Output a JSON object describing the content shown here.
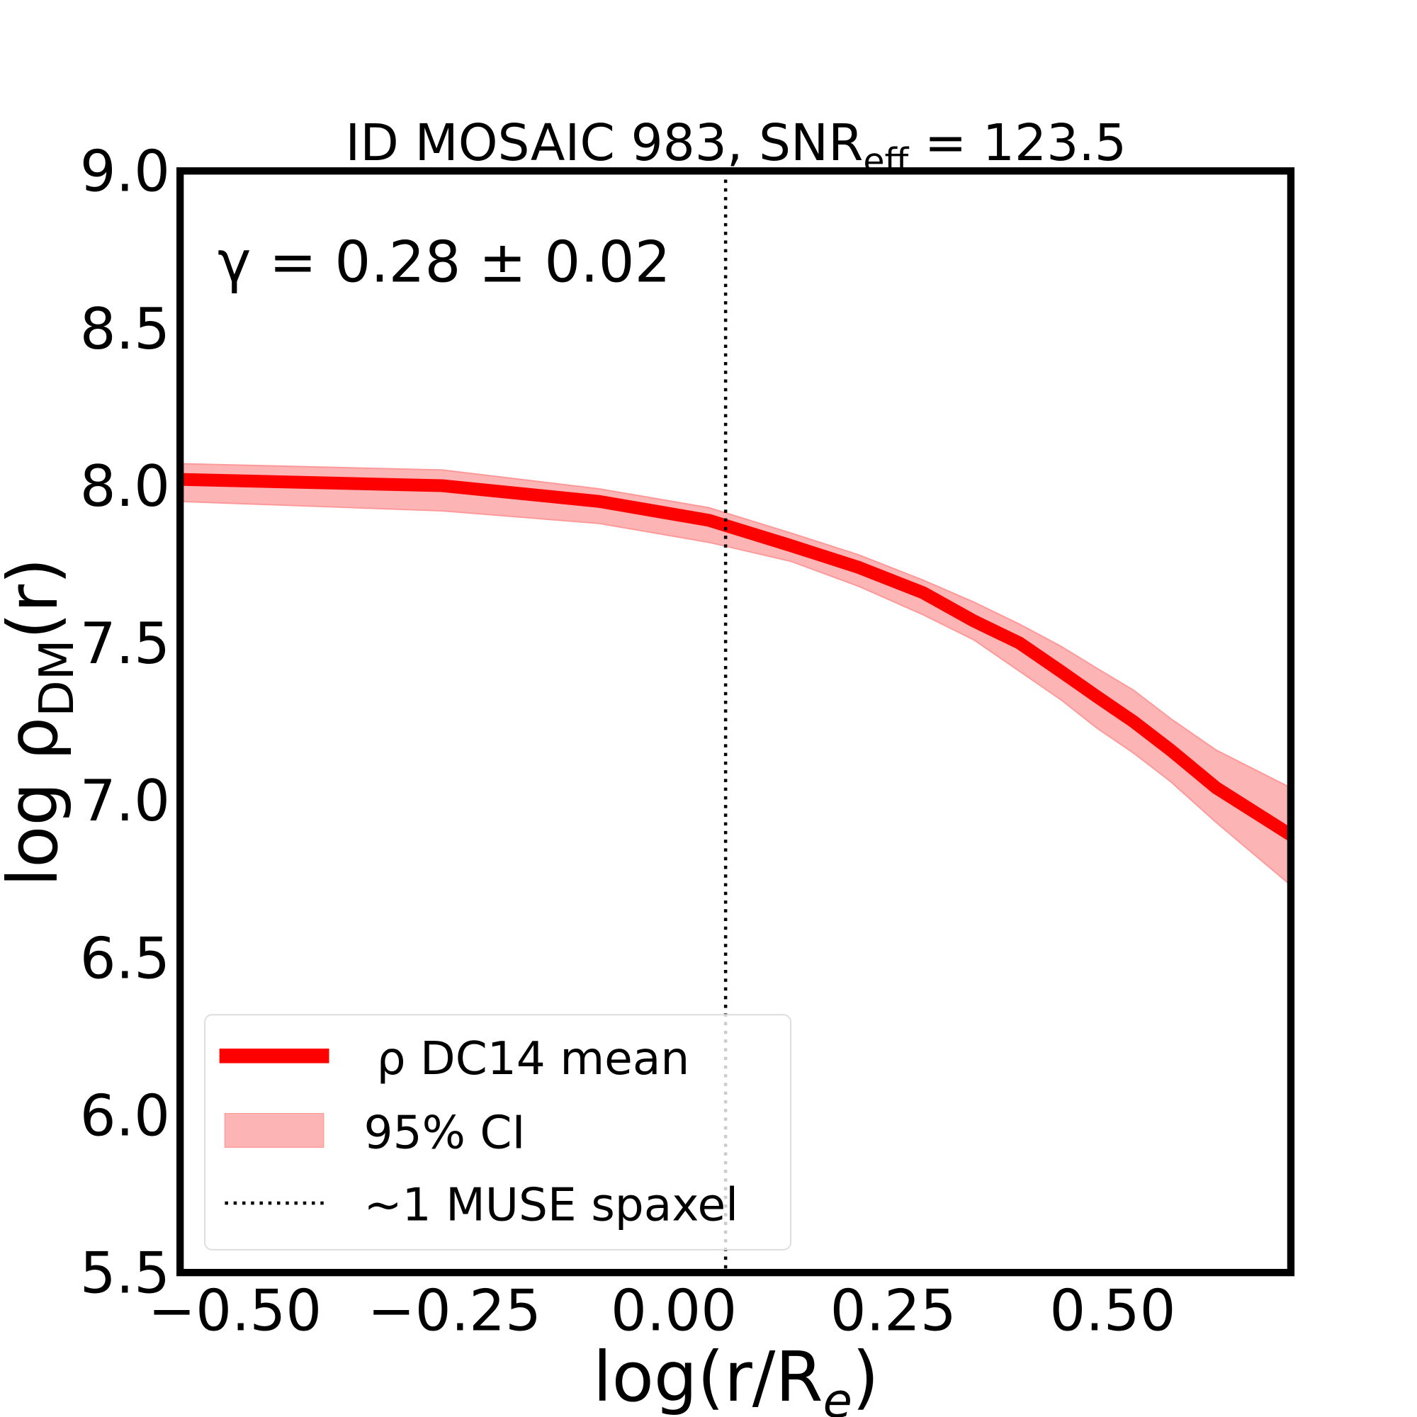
{
  "chart_data": {
    "type": "line",
    "title": "ID MOSAIC 983, SNR",
    "title_subscript": "eff",
    "title_suffix": " = 123.5",
    "annotation": "γ = 0.28 ± 0.02",
    "xlabel": "log(r/R",
    "xlabel_subscript": "e",
    "xlabel_suffix": ")",
    "ylabel": "log ρ",
    "ylabel_subscript": "DM",
    "ylabel_suffix": "(r)",
    "xlim": [
      -0.5625,
      0.703
    ],
    "ylim": [
      5.5,
      9.0
    ],
    "xticks": [
      "−0.50",
      "−0.25",
      "0.00",
      "0.25",
      "0.50"
    ],
    "xtick_values": [
      -0.5,
      -0.25,
      0.0,
      0.25,
      0.5
    ],
    "yticks": [
      "5.5",
      "6.0",
      "6.5",
      "7.0",
      "7.5",
      "8.0",
      "8.5",
      "9.0"
    ],
    "ytick_values": [
      5.5,
      6.0,
      6.5,
      7.0,
      7.5,
      8.0,
      8.5,
      9.0
    ],
    "grid": false,
    "legend_placement": "lower-left",
    "x": [
      -0.5625,
      -0.264,
      -0.085,
      0.04,
      0.133,
      0.211,
      0.284,
      0.342,
      0.394,
      0.441,
      0.482,
      0.524,
      0.566,
      0.618,
      0.703
    ],
    "series": [
      {
        "name": "ρ DC14 mean",
        "color": "#ff0000",
        "values": [
          8.02,
          8.0,
          7.95,
          7.89,
          7.81,
          7.74,
          7.66,
          7.57,
          7.5,
          7.41,
          7.33,
          7.25,
          7.16,
          7.04,
          6.89
        ]
      },
      {
        "name": "95% CI",
        "color": "#fdb4b4",
        "type": "band",
        "upper": [
          8.07,
          8.05,
          7.99,
          7.93,
          7.85,
          7.78,
          7.7,
          7.63,
          7.56,
          7.49,
          7.42,
          7.35,
          7.26,
          7.16,
          7.04
        ],
        "lower": [
          7.95,
          7.92,
          7.88,
          7.82,
          7.76,
          7.68,
          7.59,
          7.51,
          7.41,
          7.32,
          7.23,
          7.15,
          7.06,
          6.93,
          6.73
        ]
      }
    ],
    "vline": {
      "name": "~1 MUSE spaxel",
      "x": 0.059,
      "style": "dotted",
      "color": "#000000"
    },
    "legend": [
      "ρ DC14 mean",
      "95% CI",
      "~1 MUSE spaxel"
    ]
  }
}
